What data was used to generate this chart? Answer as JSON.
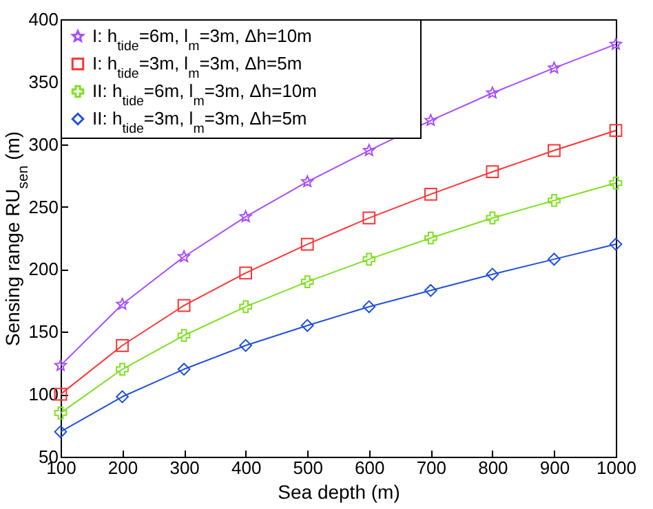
{
  "chart_data": {
    "type": "line",
    "xlabel": "Sea depth (m)",
    "ylabel": "Sensing range RU$_{sen}$ (m)",
    "x": [
      100,
      200,
      300,
      400,
      500,
      600,
      700,
      800,
      900,
      1000
    ],
    "xlim": [
      100,
      1000
    ],
    "xticks": [
      100,
      200,
      300,
      400,
      500,
      600,
      700,
      800,
      900,
      1000
    ],
    "ylim": [
      50,
      400
    ],
    "yticks": [
      50,
      100,
      150,
      200,
      250,
      300,
      350,
      400
    ],
    "grid": false,
    "legend": "top left",
    "series": [
      {
        "name": "I: h$_{tide}$=6m, l$_{m}$=3m, Δh=10m",
        "color": "#a64dff",
        "marker": "star",
        "values": [
          123,
          172,
          210,
          242,
          270,
          295,
          319,
          341,
          361,
          380
        ]
      },
      {
        "name": "I: h$_{tide}$=3m, l$_{m}$=3m, Δh=5m",
        "color": "#ff3333",
        "marker": "square",
        "values": [
          100,
          139,
          171,
          197,
          220,
          241,
          260,
          278,
          295,
          311
        ]
      },
      {
        "name": "II: h$_{tide}$=6m, l$_{m}$=3m, Δh=10m",
        "color": "#7fe020",
        "marker": "cross",
        "values": [
          85,
          120,
          147,
          170,
          190,
          208,
          225,
          241,
          255,
          269
        ]
      },
      {
        "name": "II: h$_{tide}$=3m, l$_{m}$=3m, Δh=5m",
        "color": "#1f4fe0",
        "marker": "diamond",
        "values": [
          70,
          98,
          120,
          139,
          155,
          170,
          183,
          196,
          208,
          220
        ]
      }
    ]
  }
}
